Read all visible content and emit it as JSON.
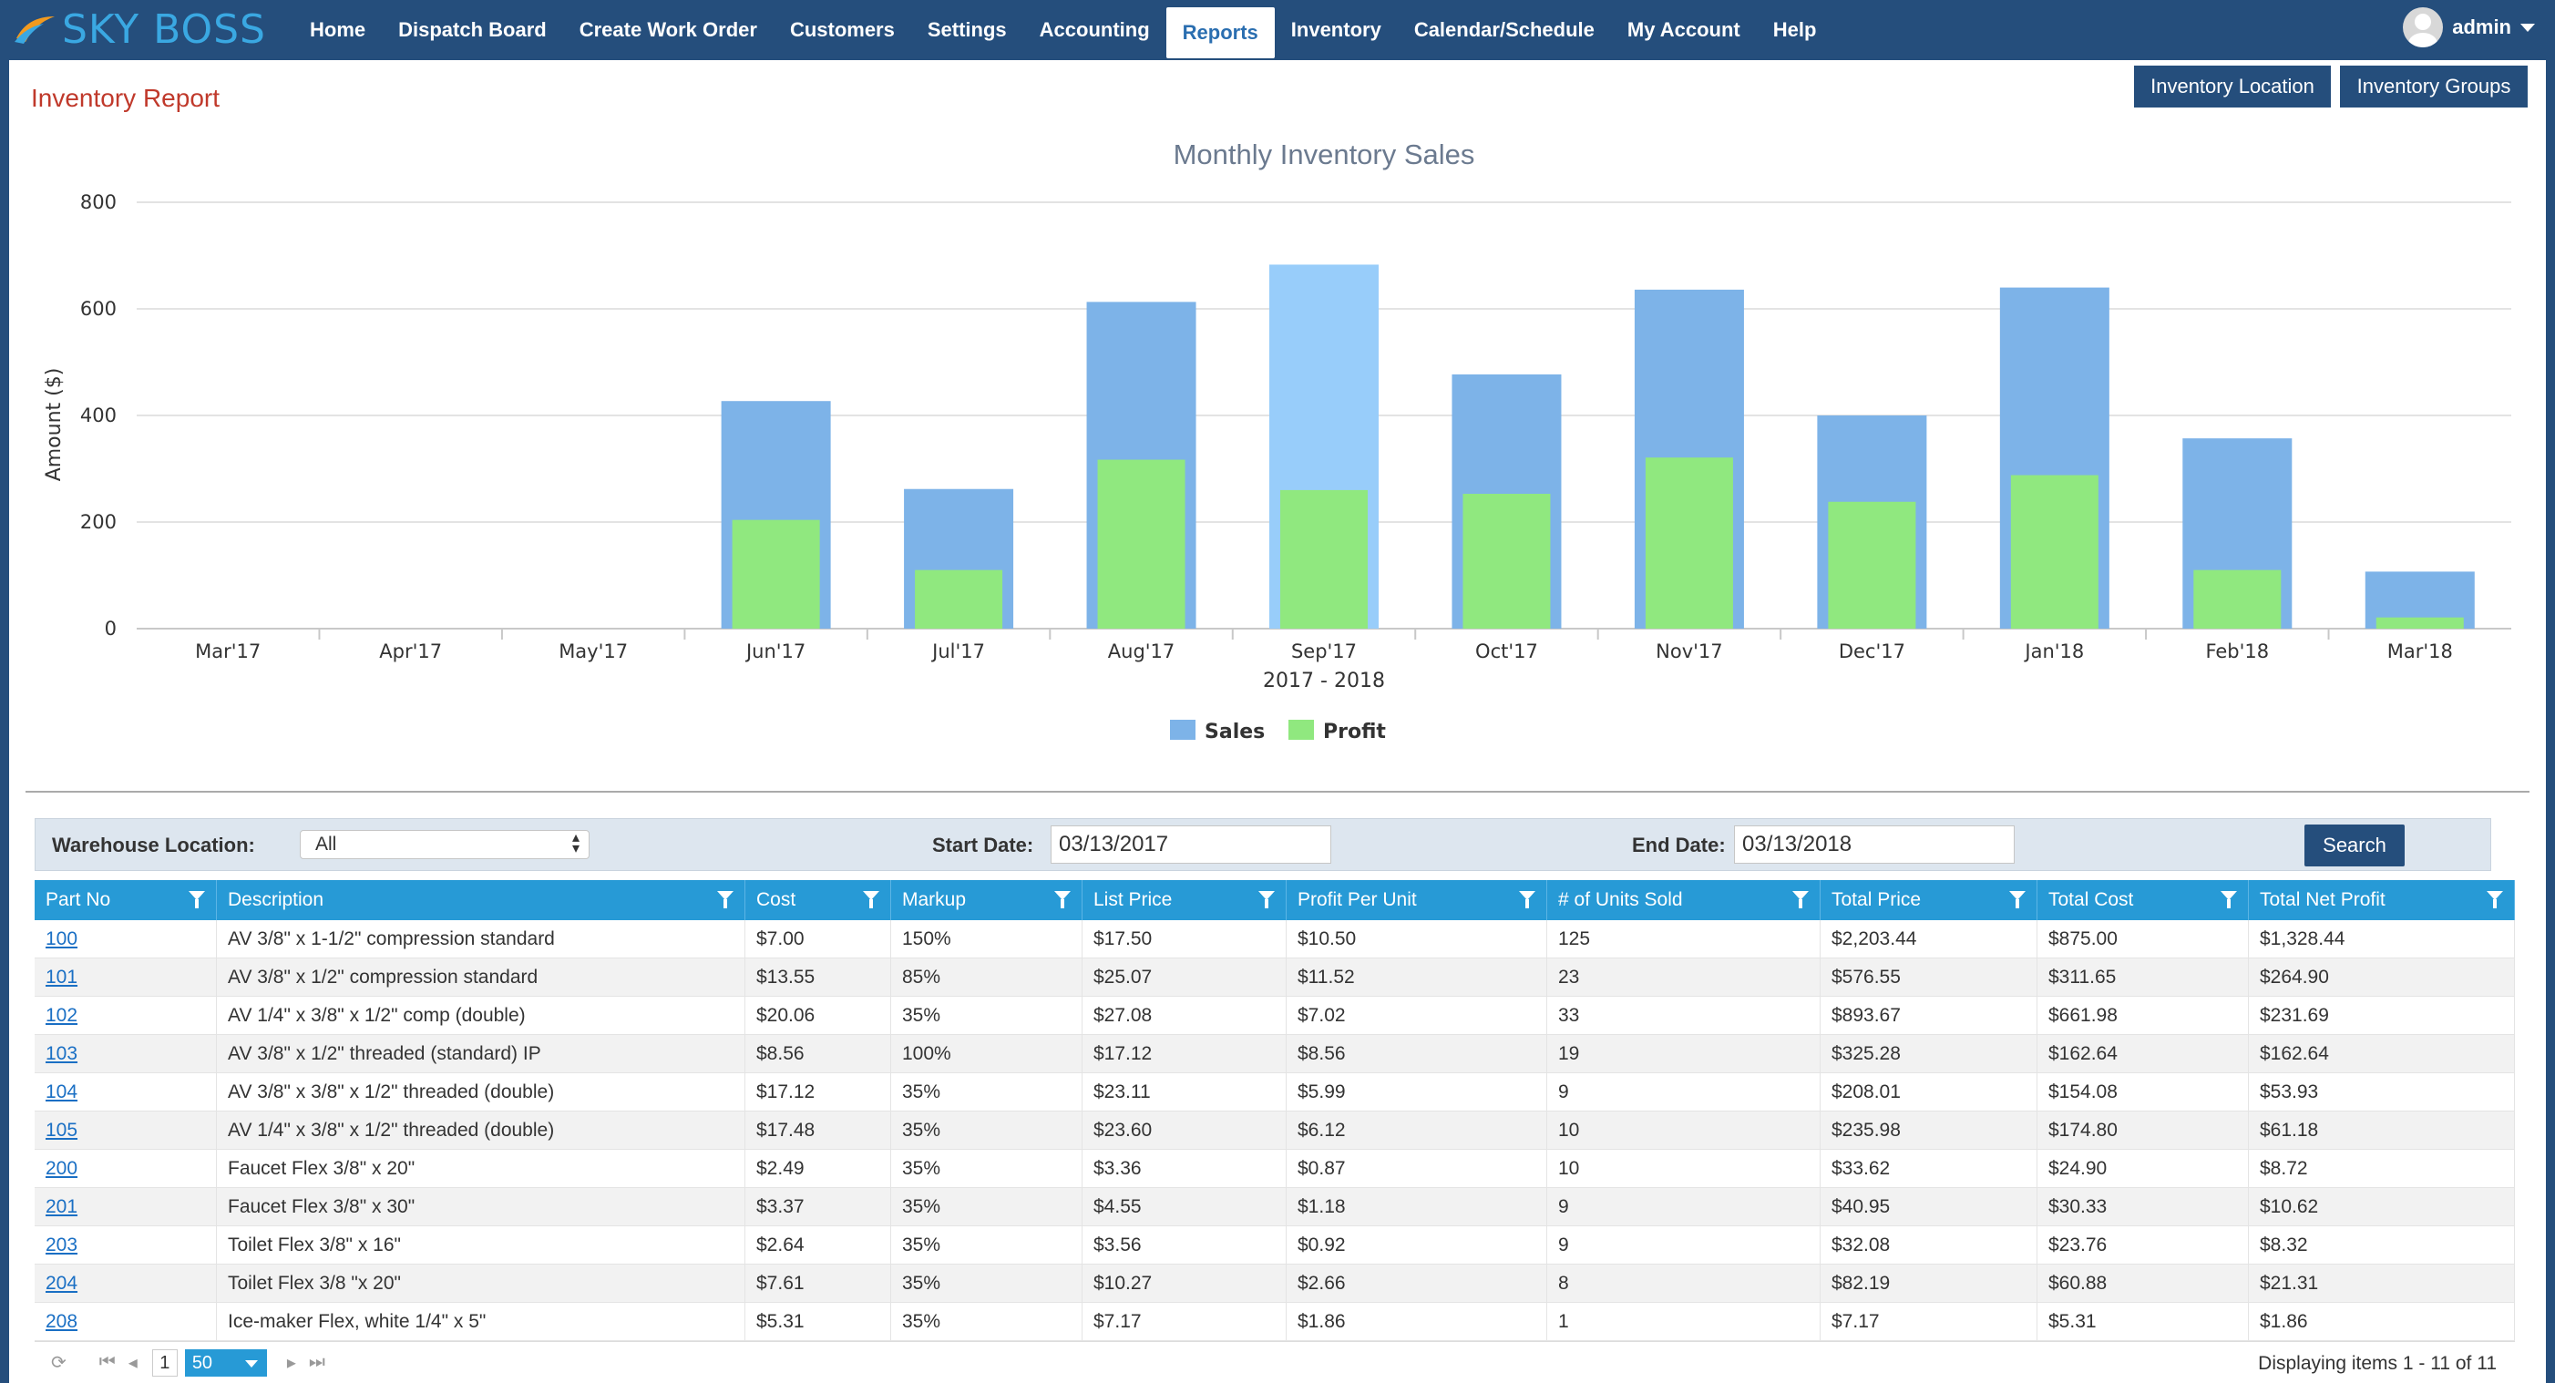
{
  "brand": {
    "name": "SKY BOSS"
  },
  "nav": {
    "items": [
      "Home",
      "Dispatch Board",
      "Create Work Order",
      "Customers",
      "Settings",
      "Accounting",
      "Reports",
      "Inventory",
      "Calendar/Schedule",
      "My Account",
      "Help"
    ],
    "active_index": 6
  },
  "user": {
    "name": "admin"
  },
  "page": {
    "title": "Inventory Report"
  },
  "buttons": {
    "inventory_location": "Inventory Location",
    "inventory_groups": "Inventory Groups"
  },
  "chart_data": {
    "type": "bar",
    "title": "Monthly Inventory Sales",
    "xlabel": "2017 - 2018",
    "ylabel": "Amount ($)",
    "ylim": [
      0,
      800
    ],
    "yticks": [
      0,
      200,
      400,
      600,
      800
    ],
    "categories": [
      "Mar'17",
      "Apr'17",
      "May'17",
      "Jun'17",
      "Jul'17",
      "Aug'17",
      "Sep'17",
      "Oct'17",
      "Nov'17",
      "Dec'17",
      "Jan'18",
      "Feb'18",
      "Mar'18"
    ],
    "series": [
      {
        "name": "Sales",
        "color": "#7db3e8",
        "values": [
          0,
          0,
          0,
          427,
          262,
          613,
          683,
          477,
          636,
          400,
          640,
          357,
          107
        ]
      },
      {
        "name": "Profit",
        "color": "#90e87f",
        "values": [
          0,
          0,
          0,
          204,
          110,
          317,
          260,
          253,
          321,
          238,
          288,
          110,
          21
        ]
      }
    ],
    "highlight_color": "#98cdfa",
    "highlight_index": 6,
    "grid": true,
    "legend_position": "bottom"
  },
  "filters": {
    "warehouse_label": "Warehouse Location:",
    "warehouse_value": "All",
    "start_label": "Start Date:",
    "start_value": "03/13/2017",
    "end_label": "End Date:",
    "end_value": "03/13/2018",
    "search_label": "Search"
  },
  "table": {
    "columns": [
      "Part No",
      "Description",
      "Cost",
      "Markup",
      "List Price",
      "Profit Per Unit",
      "# of Units Sold",
      "Total Price",
      "Total Cost",
      "Total Net Profit"
    ],
    "rows": [
      [
        "100",
        "AV 3/8\" x 1-1/2\" compression standard",
        "$7.00",
        "150%",
        "$17.50",
        "$10.50",
        "125",
        "$2,203.44",
        "$875.00",
        "$1,328.44"
      ],
      [
        "101",
        "AV 3/8\" x 1/2\" compression standard",
        "$13.55",
        "85%",
        "$25.07",
        "$11.52",
        "23",
        "$576.55",
        "$311.65",
        "$264.90"
      ],
      [
        "102",
        "AV 1/4\" x 3/8\" x 1/2\" comp (double)",
        "$20.06",
        "35%",
        "$27.08",
        "$7.02",
        "33",
        "$893.67",
        "$661.98",
        "$231.69"
      ],
      [
        "103",
        "AV 3/8\" x 1/2\" threaded (standard) IP",
        "$8.56",
        "100%",
        "$17.12",
        "$8.56",
        "19",
        "$325.28",
        "$162.64",
        "$162.64"
      ],
      [
        "104",
        "AV 3/8\" x 3/8\" x 1/2\" threaded (double)",
        "$17.12",
        "35%",
        "$23.11",
        "$5.99",
        "9",
        "$208.01",
        "$154.08",
        "$53.93"
      ],
      [
        "105",
        "AV 1/4\" x 3/8\" x 1/2\" threaded (double)",
        "$17.48",
        "35%",
        "$23.60",
        "$6.12",
        "10",
        "$235.98",
        "$174.80",
        "$61.18"
      ],
      [
        "200",
        "Faucet Flex 3/8\" x 20\"",
        "$2.49",
        "35%",
        "$3.36",
        "$0.87",
        "10",
        "$33.62",
        "$24.90",
        "$8.72"
      ],
      [
        "201",
        "Faucet Flex 3/8\" x 30\"",
        "$3.37",
        "35%",
        "$4.55",
        "$1.18",
        "9",
        "$40.95",
        "$30.33",
        "$10.62"
      ],
      [
        "203",
        "Toilet Flex 3/8\" x 16\"",
        "$2.64",
        "35%",
        "$3.56",
        "$0.92",
        "9",
        "$32.08",
        "$23.76",
        "$8.32"
      ],
      [
        "204",
        "Toilet Flex 3/8 \"x 20\"",
        "$7.61",
        "35%",
        "$10.27",
        "$2.66",
        "8",
        "$82.19",
        "$60.88",
        "$21.31"
      ],
      [
        "208",
        "Ice-maker Flex, white 1/4\" x 5\"",
        "$5.31",
        "35%",
        "$7.17",
        "$1.86",
        "1",
        "$7.17",
        "$5.31",
        "$1.86"
      ]
    ]
  },
  "pager": {
    "page": "1",
    "page_size": "50",
    "info": "Displaying items 1 - 11 of 11"
  }
}
